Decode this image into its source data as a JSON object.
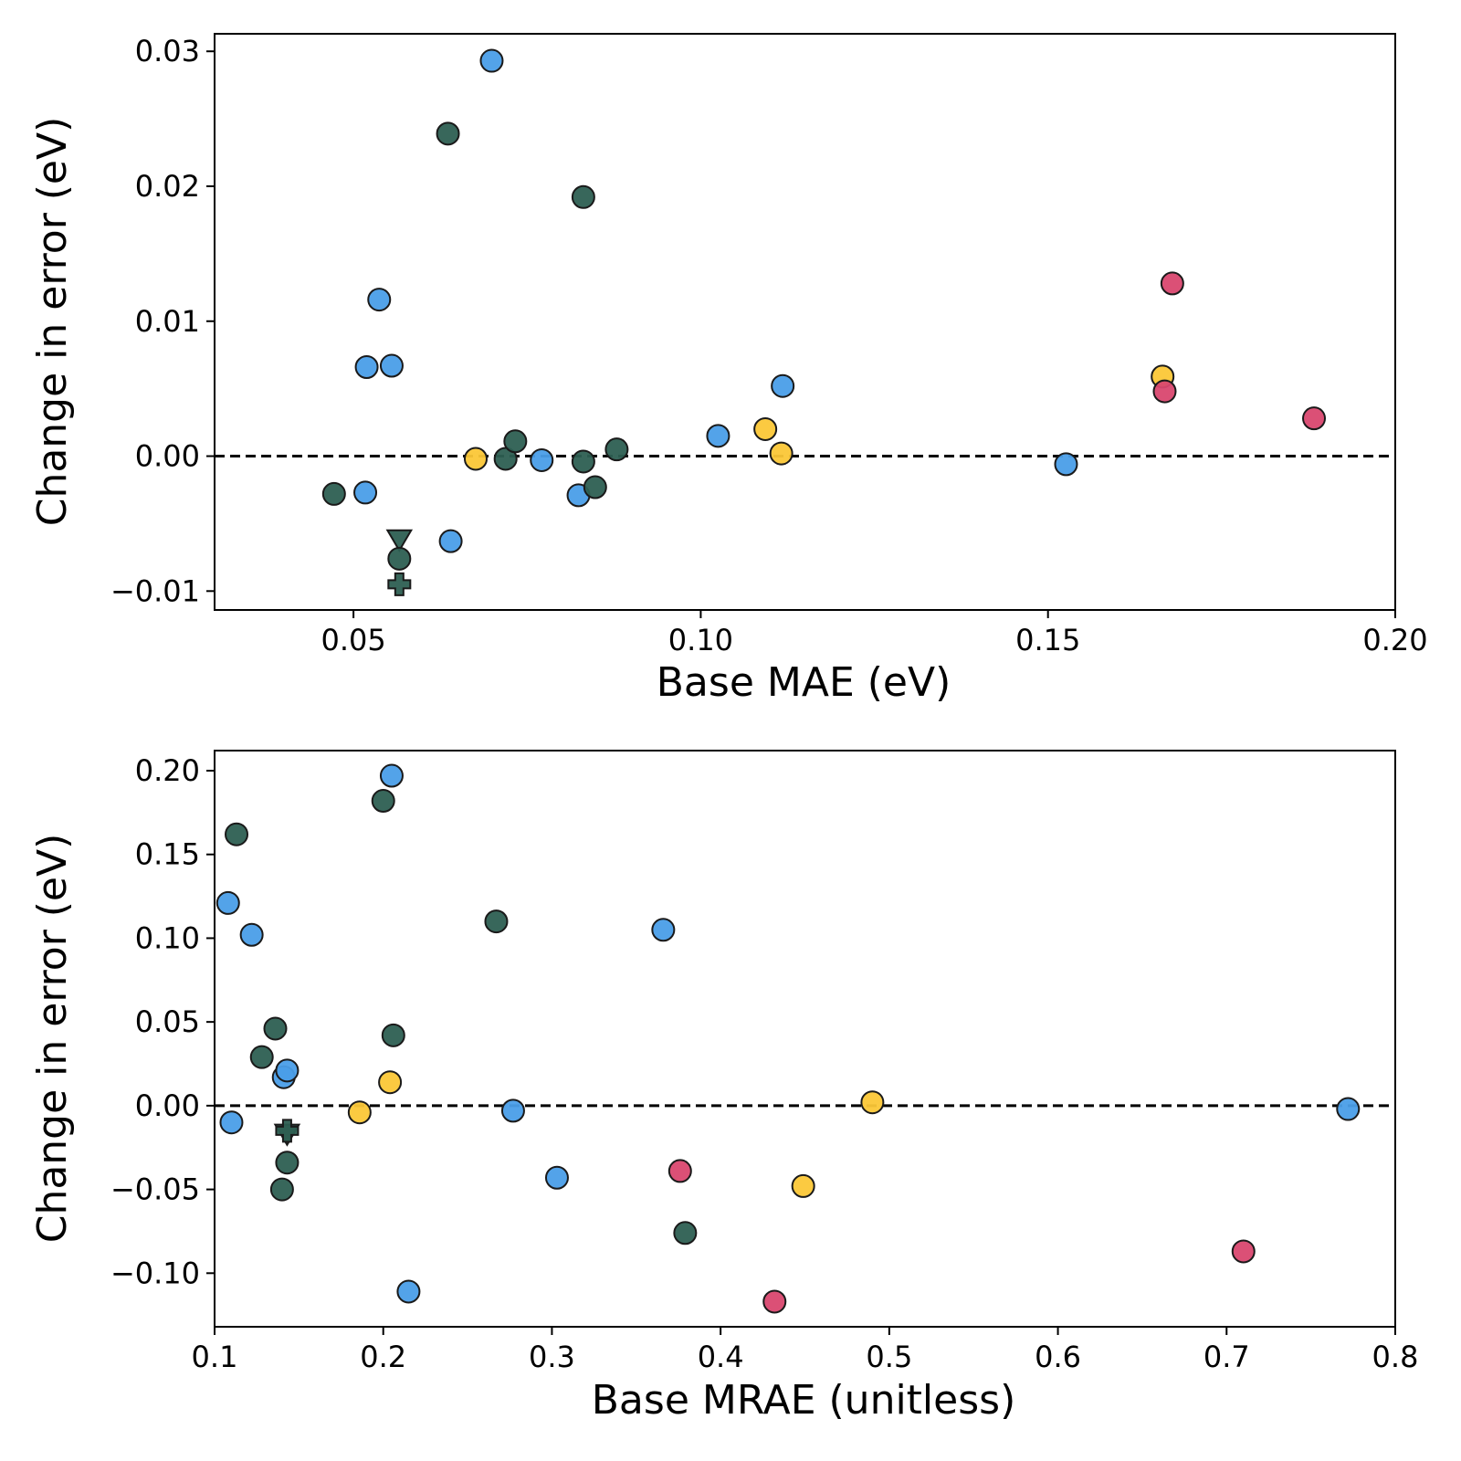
{
  "colors": {
    "blue": "#4a9ee8",
    "green": "#2d5f52",
    "yellow": "#fbc737",
    "pink": "#d9476f",
    "edge": "#1a1a1a",
    "zero_line": "#000000"
  },
  "chart_data": [
    {
      "type": "scatter",
      "xlabel": "Base MAE (eV)",
      "ylabel": "Change in error (eV)",
      "xlim": [
        0.03,
        0.2
      ],
      "ylim": [
        -0.0114,
        0.0313
      ],
      "xticks": [
        0.05,
        0.1,
        0.15,
        0.2
      ],
      "xtick_labels": [
        "0.05",
        "0.10",
        "0.15",
        "0.20"
      ],
      "yticks": [
        -0.01,
        0.0,
        0.01,
        0.02,
        0.03
      ],
      "ytick_labels": [
        "−0.01",
        "0.00",
        "0.01",
        "0.02",
        "0.03"
      ],
      "zero_line": true,
      "grid": false,
      "points": [
        {
          "x": 0.0472,
          "y": -0.0028,
          "color": "green",
          "marker": "circle"
        },
        {
          "x": 0.0517,
          "y": -0.0027,
          "color": "blue",
          "marker": "circle"
        },
        {
          "x": 0.0519,
          "y": 0.0066,
          "color": "blue",
          "marker": "circle"
        },
        {
          "x": 0.0537,
          "y": 0.0116,
          "color": "blue",
          "marker": "circle"
        },
        {
          "x": 0.0555,
          "y": 0.0067,
          "color": "blue",
          "marker": "circle"
        },
        {
          "x": 0.0566,
          "y": -0.0062,
          "color": "green",
          "marker": "triangle-down"
        },
        {
          "x": 0.0566,
          "y": -0.0076,
          "color": "green",
          "marker": "circle"
        },
        {
          "x": 0.0566,
          "y": -0.0095,
          "color": "green",
          "marker": "plus"
        },
        {
          "x": 0.0636,
          "y": 0.0239,
          "color": "green",
          "marker": "circle"
        },
        {
          "x": 0.064,
          "y": -0.0063,
          "color": "blue",
          "marker": "circle"
        },
        {
          "x": 0.0676,
          "y": -0.0002,
          "color": "yellow",
          "marker": "circle"
        },
        {
          "x": 0.0699,
          "y": 0.0293,
          "color": "blue",
          "marker": "circle"
        },
        {
          "x": 0.0719,
          "y": -0.0002,
          "color": "green",
          "marker": "circle"
        },
        {
          "x": 0.0733,
          "y": 0.0011,
          "color": "green",
          "marker": "circle"
        },
        {
          "x": 0.0771,
          "y": -0.0003,
          "color": "blue",
          "marker": "circle"
        },
        {
          "x": 0.0824,
          "y": -0.0029,
          "color": "blue",
          "marker": "circle"
        },
        {
          "x": 0.0831,
          "y": 0.0192,
          "color": "green",
          "marker": "circle"
        },
        {
          "x": 0.0831,
          "y": -0.0004,
          "color": "green",
          "marker": "circle"
        },
        {
          "x": 0.0848,
          "y": -0.0023,
          "color": "green",
          "marker": "circle"
        },
        {
          "x": 0.0879,
          "y": 0.0005,
          "color": "green",
          "marker": "circle"
        },
        {
          "x": 0.1025,
          "y": 0.0015,
          "color": "blue",
          "marker": "circle"
        },
        {
          "x": 0.1093,
          "y": 0.002,
          "color": "yellow",
          "marker": "circle"
        },
        {
          "x": 0.1116,
          "y": 0.0002,
          "color": "yellow",
          "marker": "circle"
        },
        {
          "x": 0.1118,
          "y": 0.0052,
          "color": "blue",
          "marker": "circle"
        },
        {
          "x": 0.1526,
          "y": -0.0006,
          "color": "blue",
          "marker": "circle"
        },
        {
          "x": 0.1665,
          "y": 0.0059,
          "color": "yellow",
          "marker": "circle"
        },
        {
          "x": 0.1668,
          "y": 0.0048,
          "color": "pink",
          "marker": "circle"
        },
        {
          "x": 0.1679,
          "y": 0.0128,
          "color": "pink",
          "marker": "circle"
        },
        {
          "x": 0.1883,
          "y": 0.0028,
          "color": "pink",
          "marker": "circle"
        }
      ]
    },
    {
      "type": "scatter",
      "xlabel": "Base MRAE (unitless)",
      "ylabel": "Change in error (eV)",
      "xlim": [
        0.1,
        0.8
      ],
      "ylim": [
        -0.132,
        0.212
      ],
      "xticks": [
        0.1,
        0.2,
        0.3,
        0.4,
        0.5,
        0.6,
        0.7,
        0.8
      ],
      "xtick_labels": [
        "0.1",
        "0.2",
        "0.3",
        "0.4",
        "0.5",
        "0.6",
        "0.7",
        "0.8"
      ],
      "yticks": [
        -0.1,
        -0.05,
        0.0,
        0.05,
        0.1,
        0.15,
        0.2
      ],
      "ytick_labels": [
        "−0.10",
        "−0.05",
        "0.00",
        "0.05",
        "0.10",
        "0.15",
        "0.20"
      ],
      "zero_line": true,
      "grid": false,
      "points": [
        {
          "x": 0.108,
          "y": 0.121,
          "color": "blue",
          "marker": "circle"
        },
        {
          "x": 0.11,
          "y": -0.01,
          "color": "blue",
          "marker": "circle"
        },
        {
          "x": 0.113,
          "y": 0.162,
          "color": "green",
          "marker": "circle"
        },
        {
          "x": 0.122,
          "y": 0.102,
          "color": "blue",
          "marker": "circle"
        },
        {
          "x": 0.128,
          "y": 0.029,
          "color": "green",
          "marker": "circle"
        },
        {
          "x": 0.136,
          "y": 0.046,
          "color": "green",
          "marker": "circle"
        },
        {
          "x": 0.14,
          "y": -0.05,
          "color": "green",
          "marker": "circle"
        },
        {
          "x": 0.141,
          "y": 0.017,
          "color": "blue",
          "marker": "circle"
        },
        {
          "x": 0.143,
          "y": 0.021,
          "color": "blue",
          "marker": "circle"
        },
        {
          "x": 0.143,
          "y": -0.017,
          "color": "green",
          "marker": "triangle-down"
        },
        {
          "x": 0.143,
          "y": -0.015,
          "color": "green",
          "marker": "plus"
        },
        {
          "x": 0.143,
          "y": -0.034,
          "color": "green",
          "marker": "circle"
        },
        {
          "x": 0.186,
          "y": -0.004,
          "color": "yellow",
          "marker": "circle"
        },
        {
          "x": 0.2,
          "y": 0.182,
          "color": "green",
          "marker": "circle"
        },
        {
          "x": 0.204,
          "y": 0.014,
          "color": "yellow",
          "marker": "circle"
        },
        {
          "x": 0.205,
          "y": 0.197,
          "color": "blue",
          "marker": "circle"
        },
        {
          "x": 0.206,
          "y": 0.042,
          "color": "green",
          "marker": "circle"
        },
        {
          "x": 0.215,
          "y": -0.111,
          "color": "blue",
          "marker": "circle"
        },
        {
          "x": 0.267,
          "y": 0.11,
          "color": "green",
          "marker": "circle"
        },
        {
          "x": 0.277,
          "y": -0.003,
          "color": "blue",
          "marker": "circle"
        },
        {
          "x": 0.303,
          "y": -0.043,
          "color": "blue",
          "marker": "circle"
        },
        {
          "x": 0.366,
          "y": 0.105,
          "color": "blue",
          "marker": "circle"
        },
        {
          "x": 0.376,
          "y": -0.039,
          "color": "pink",
          "marker": "circle"
        },
        {
          "x": 0.379,
          "y": -0.076,
          "color": "green",
          "marker": "circle"
        },
        {
          "x": 0.432,
          "y": -0.117,
          "color": "pink",
          "marker": "circle"
        },
        {
          "x": 0.449,
          "y": -0.048,
          "color": "yellow",
          "marker": "circle"
        },
        {
          "x": 0.49,
          "y": 0.002,
          "color": "yellow",
          "marker": "circle"
        },
        {
          "x": 0.71,
          "y": -0.087,
          "color": "pink",
          "marker": "circle"
        },
        {
          "x": 0.772,
          "y": -0.002,
          "color": "blue",
          "marker": "circle"
        }
      ]
    }
  ]
}
